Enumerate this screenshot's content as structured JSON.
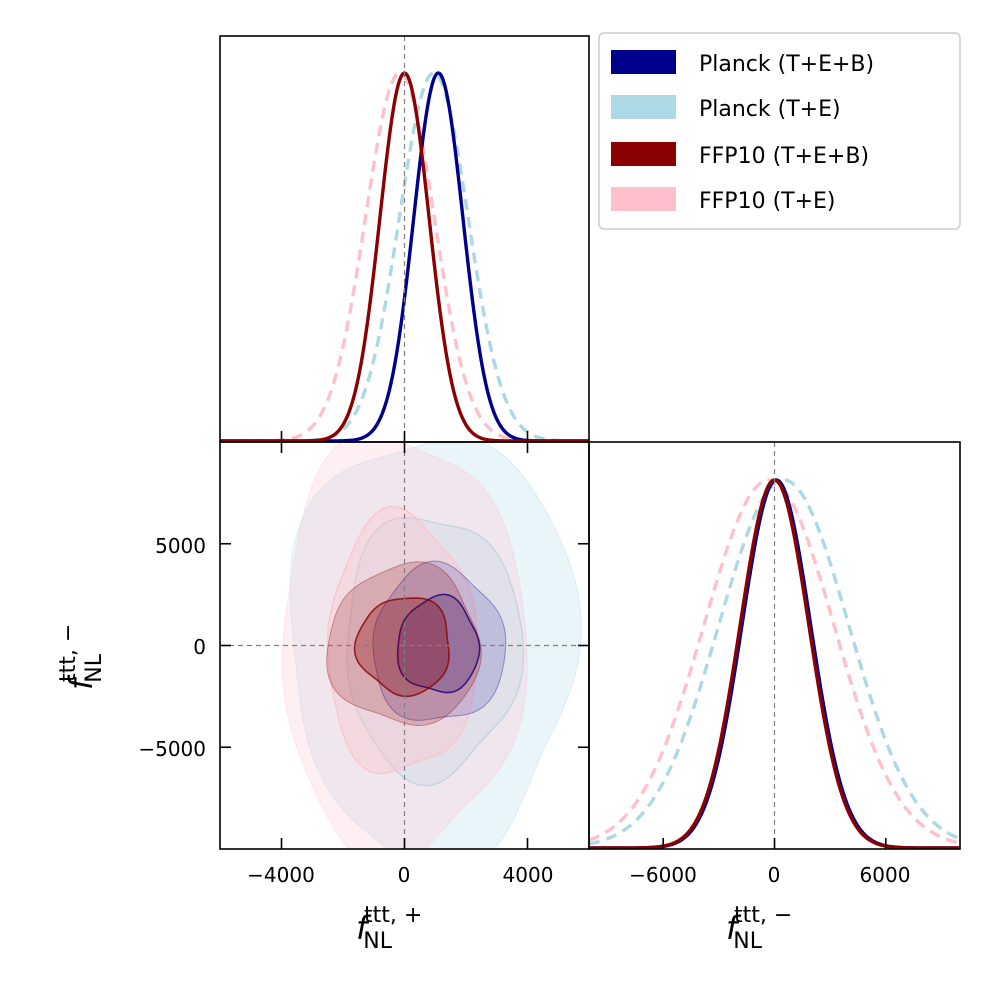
{
  "chart_data": {
    "type": "corner",
    "legend": {
      "placement": "top-right",
      "entries": [
        {
          "label": "Planck (T+E+B)",
          "color": "#00008b",
          "style": "solid"
        },
        {
          "label": "Planck (T+E)",
          "color": "#add8e6",
          "style": "dashed"
        },
        {
          "label": "FFP10 (T+E+B)",
          "color": "#8b0000",
          "style": "solid"
        },
        {
          "label": "FFP10 (T+E)",
          "color": "#ffc0cb",
          "style": "dashed"
        }
      ]
    },
    "parameters": [
      {
        "name": "plus",
        "label_main": "f",
        "label_sup": "ttt, +",
        "label_sub": "NL",
        "range": [
          -6000,
          6000
        ],
        "ticks": [
          -4000,
          0,
          4000
        ],
        "tick_labels": [
          "−4000",
          "0",
          "4000"
        ]
      },
      {
        "name": "minus",
        "label_main": "f",
        "label_sup": "ttt, −",
        "label_sub": "NL",
        "range": [
          -10000,
          10000
        ],
        "ticks": [
          -6000,
          0,
          6000
        ],
        "tick_labels": [
          "−6000",
          "0",
          "6000"
        ]
      }
    ],
    "y_axis_2d": {
      "range": [
        -10000,
        10000
      ],
      "ticks": [
        5000,
        0,
        -5000
      ],
      "tick_labels": [
        "5000",
        "0",
        "−5000"
      ]
    },
    "marginals_plus": {
      "series": [
        {
          "name": "Planck (T+E+B)",
          "color": "#00008b",
          "style": "solid",
          "mean": 1100,
          "sigma": 800
        },
        {
          "name": "Planck (T+E)",
          "color": "#add8e6",
          "style": "dashed",
          "mean": 950,
          "sigma": 1120
        },
        {
          "name": "FFP10 (T+E+B)",
          "color": "#8b0000",
          "style": "solid",
          "mean": 0,
          "sigma": 800
        },
        {
          "name": "FFP10 (T+E)",
          "color": "#ffc0cb",
          "style": "dashed",
          "mean": -150,
          "sigma": 1120
        }
      ]
    },
    "marginals_minus": {
      "series": [
        {
          "name": "Planck (T+E+B)",
          "color": "#00008b",
          "style": "solid",
          "mean": 100,
          "sigma": 1850
        },
        {
          "name": "Planck (T+E)",
          "color": "#add8e6",
          "style": "dashed",
          "mean": 500,
          "sigma": 3500
        },
        {
          "name": "FFP10 (T+E+B)",
          "color": "#8b0000",
          "style": "solid",
          "mean": 0,
          "sigma": 1850
        },
        {
          "name": "FFP10 (T+E)",
          "color": "#ffc0cb",
          "style": "dashed",
          "mean": -300,
          "sigma": 3500
        }
      ]
    },
    "contours_2d": [
      {
        "name": "Planck (T+E)",
        "color": "#add8e6",
        "mean": [
          900,
          0
        ],
        "sigma": [
          1880,
          4250
        ],
        "levels": [
          1,
          2
        ],
        "alpha": [
          0.3,
          0.25
        ]
      },
      {
        "name": "FFP10 (T+E)",
        "color": "#ffc0cb",
        "mean": [
          -100,
          0
        ],
        "sigma": [
          1600,
          4200
        ],
        "levels": [
          1,
          2
        ],
        "alpha": [
          0.35,
          0.25
        ]
      },
      {
        "name": "Planck (T+E+B)",
        "color": "#00008b",
        "mean": [
          1100,
          0
        ],
        "sigma": [
          870,
          1550
        ],
        "levels": [
          1,
          2
        ],
        "alpha": [
          0.22,
          0.15
        ]
      },
      {
        "name": "FFP10 (T+E+B)",
        "color": "#8b0000",
        "mean": [
          0,
          0
        ],
        "sigma": [
          1000,
          1580
        ],
        "levels": [
          1,
          2
        ],
        "alpha": [
          0.3,
          0.2
        ]
      }
    ],
    "reference_lines": {
      "plus": 0,
      "minus": 0
    }
  }
}
